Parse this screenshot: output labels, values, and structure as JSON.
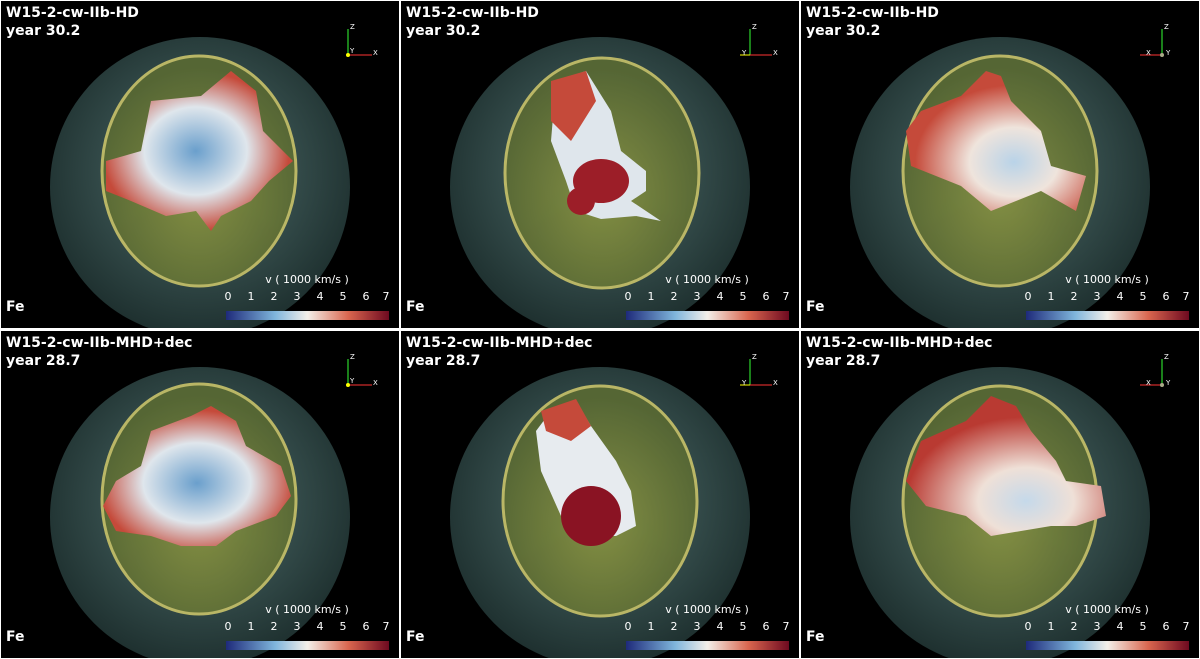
{
  "colorbar": {
    "label": "v ( 1000 km/s )",
    "ticks": [
      "0",
      "1",
      "2",
      "3",
      "4",
      "5",
      "6",
      "7"
    ],
    "colors": {
      "low": "#1e2a7a",
      "mid_blue": "#7fb5dc",
      "white": "#f3efe9",
      "mid_red": "#d9664f",
      "high": "#6e0a20"
    }
  },
  "axis_labels": {
    "z": "Z",
    "y": "Y",
    "x": "X"
  },
  "element": "Fe",
  "rows": [
    {
      "title": "W15-2-cw-IIb-HD",
      "year": "year 30.2"
    },
    {
      "title": "W15-2-cw-IIb-MHD+dec",
      "year": "year 28.7"
    }
  ],
  "panels": [
    {
      "row": 0,
      "view": "front"
    },
    {
      "row": 0,
      "view": "side"
    },
    {
      "row": 0,
      "view": "back"
    },
    {
      "row": 1,
      "view": "front"
    },
    {
      "row": 1,
      "view": "side"
    },
    {
      "row": 1,
      "view": "back"
    }
  ]
}
